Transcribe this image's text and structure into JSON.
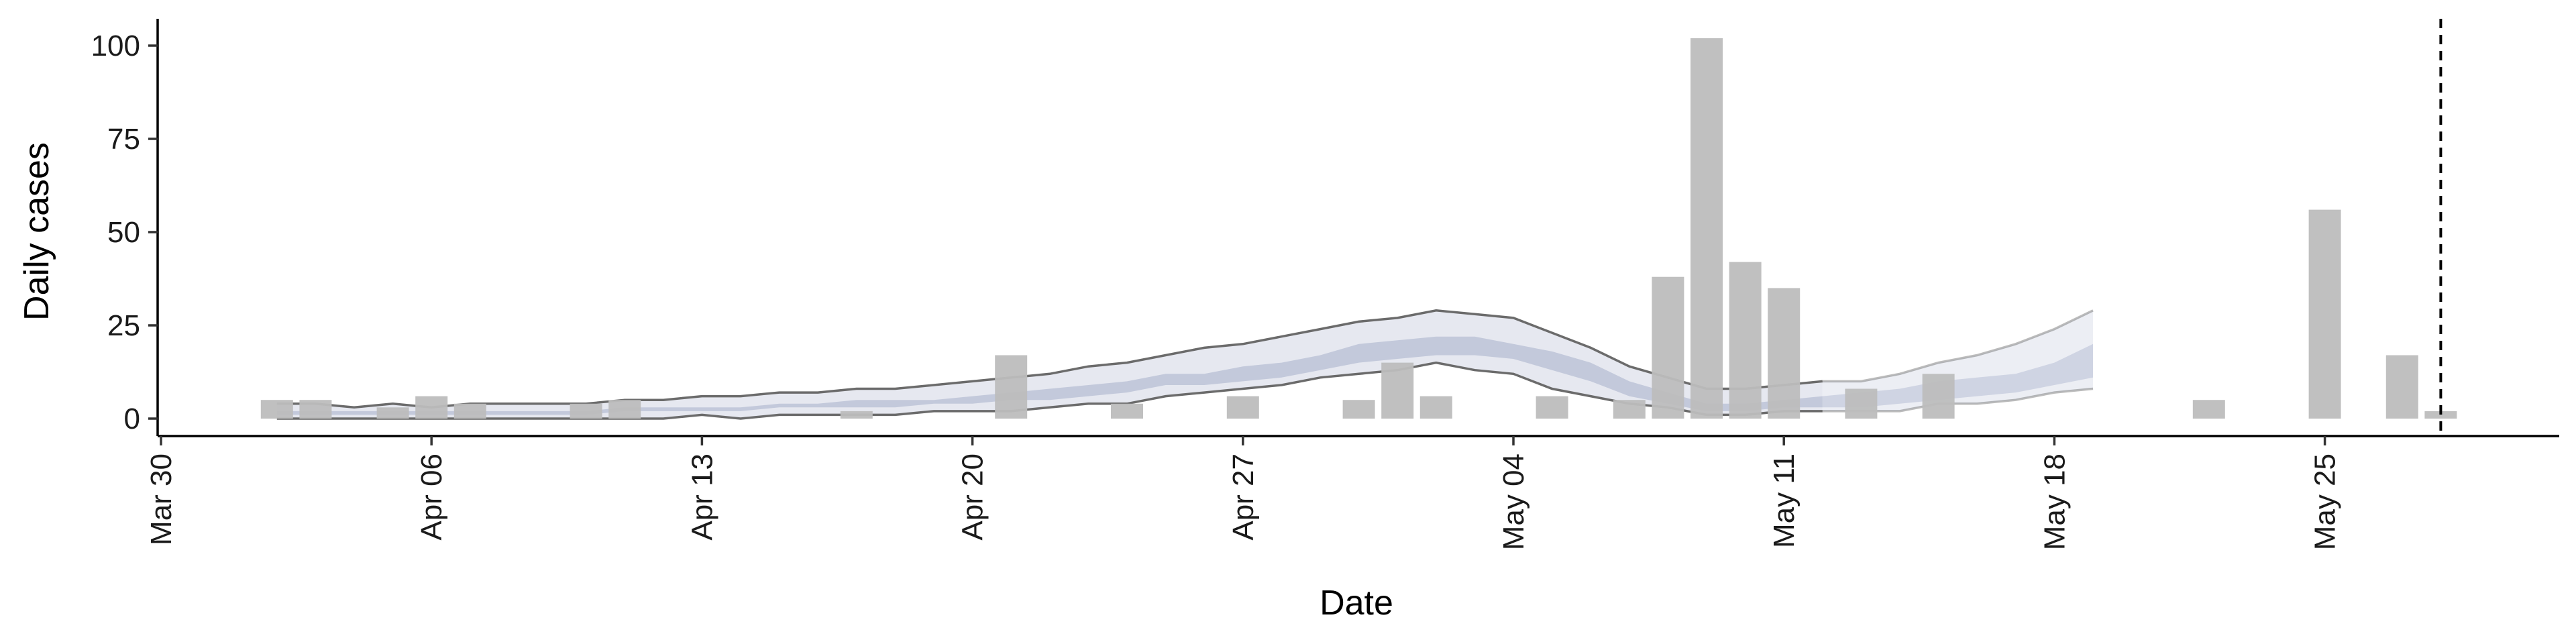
{
  "chart_data": {
    "type": "bar",
    "xlabel": "Date",
    "ylabel": "Daily cases",
    "xlim": [
      "2020-03-30",
      "2020-05-31"
    ],
    "ylim": [
      -5,
      107
    ],
    "x_ticks": [
      "2020-03-30",
      "2020-04-06",
      "2020-04-13",
      "2020-04-20",
      "2020-04-27",
      "2020-05-04",
      "2020-05-11",
      "2020-05-18",
      "2020-05-25"
    ],
    "x_tick_labels": [
      "Mar 30",
      "Apr 06",
      "Apr 13",
      "Apr 20",
      "Apr 27",
      "May 04",
      "May 11",
      "May 18",
      "May 25"
    ],
    "y_ticks": [
      0,
      25,
      50,
      75,
      100
    ],
    "y_tick_labels": [
      "0",
      "25",
      "50",
      "75",
      "100"
    ],
    "grid": false,
    "vline_date": "2020-05-28",
    "bars": {
      "color": "#bdbdbd",
      "points": [
        {
          "date": "2020-04-02",
          "value": 5
        },
        {
          "date": "2020-04-03",
          "value": 5
        },
        {
          "date": "2020-04-05",
          "value": 3
        },
        {
          "date": "2020-04-06",
          "value": 6
        },
        {
          "date": "2020-04-07",
          "value": 4
        },
        {
          "date": "2020-04-10",
          "value": 4
        },
        {
          "date": "2020-04-11",
          "value": 5
        },
        {
          "date": "2020-04-17",
          "value": 2
        },
        {
          "date": "2020-04-21",
          "value": 17
        },
        {
          "date": "2020-04-24",
          "value": 4
        },
        {
          "date": "2020-04-27",
          "value": 6
        },
        {
          "date": "2020-04-30",
          "value": 5
        },
        {
          "date": "2020-05-01",
          "value": 15
        },
        {
          "date": "2020-05-02",
          "value": 6
        },
        {
          "date": "2020-05-05",
          "value": 6
        },
        {
          "date": "2020-05-07",
          "value": 5
        },
        {
          "date": "2020-05-08",
          "value": 38
        },
        {
          "date": "2020-05-09",
          "value": 102
        },
        {
          "date": "2020-05-10",
          "value": 42
        },
        {
          "date": "2020-05-11",
          "value": 35
        },
        {
          "date": "2020-05-13",
          "value": 8
        },
        {
          "date": "2020-05-15",
          "value": 12
        },
        {
          "date": "2020-05-22",
          "value": 5
        },
        {
          "date": "2020-05-25",
          "value": 56
        },
        {
          "date": "2020-05-27",
          "value": 17
        },
        {
          "date": "2020-05-28",
          "value": 2
        }
      ]
    },
    "bands": {
      "estimate": {
        "dates": [
          "2020-04-02",
          "2020-04-03",
          "2020-04-04",
          "2020-04-05",
          "2020-04-06",
          "2020-04-07",
          "2020-04-08",
          "2020-04-09",
          "2020-04-10",
          "2020-04-11",
          "2020-04-12",
          "2020-04-13",
          "2020-04-14",
          "2020-04-15",
          "2020-04-16",
          "2020-04-17",
          "2020-04-18",
          "2020-04-19",
          "2020-04-20",
          "2020-04-21",
          "2020-04-22",
          "2020-04-23",
          "2020-04-24",
          "2020-04-25",
          "2020-04-26",
          "2020-04-27",
          "2020-04-28",
          "2020-04-29",
          "2020-04-30",
          "2020-05-01",
          "2020-05-02",
          "2020-05-03",
          "2020-05-04",
          "2020-05-05",
          "2020-05-06",
          "2020-05-07",
          "2020-05-08",
          "2020-05-09",
          "2020-05-10",
          "2020-05-11",
          "2020-05-12",
          "2020-05-13",
          "2020-05-14",
          "2020-05-15",
          "2020-05-16",
          "2020-05-17",
          "2020-05-18",
          "2020-05-19"
        ],
        "outer_lower": [
          0,
          0,
          0,
          0,
          0,
          0,
          0,
          0,
          0,
          0,
          0,
          1,
          0,
          1,
          1,
          1,
          1,
          2,
          2,
          2,
          3,
          4,
          4,
          6,
          7,
          8,
          9,
          11,
          12,
          13,
          15,
          13,
          12,
          8,
          6,
          4,
          3,
          1,
          1,
          2,
          2,
          2,
          2,
          4,
          4,
          5,
          7,
          8
        ],
        "outer_upper": [
          4,
          4,
          3,
          4,
          3,
          4,
          4,
          4,
          4,
          5,
          5,
          6,
          6,
          7,
          7,
          8,
          8,
          9,
          10,
          11,
          12,
          14,
          15,
          17,
          19,
          20,
          22,
          24,
          26,
          27,
          29,
          28,
          27,
          23,
          19,
          14,
          11,
          8,
          8,
          9,
          10,
          10,
          12,
          15,
          17,
          20,
          24,
          29
        ],
        "inner_lower": [
          1,
          1,
          1,
          1,
          1,
          1,
          1,
          1,
          1,
          2,
          2,
          2,
          2,
          3,
          3,
          3,
          3,
          4,
          4,
          5,
          5,
          6,
          7,
          9,
          9,
          10,
          11,
          13,
          15,
          16,
          17,
          17,
          16,
          13,
          10,
          6,
          4,
          2,
          2,
          3,
          3,
          3,
          4,
          5,
          6,
          7,
          9,
          11
        ],
        "inner_upper": [
          2,
          2,
          2,
          2,
          2,
          2,
          2,
          2,
          2,
          3,
          3,
          3,
          3,
          4,
          4,
          5,
          5,
          5,
          6,
          7,
          8,
          9,
          10,
          12,
          12,
          14,
          15,
          17,
          20,
          21,
          22,
          22,
          20,
          18,
          15,
          10,
          7,
          4,
          4,
          5,
          6,
          7,
          8,
          10,
          11,
          12,
          15,
          20
        ],
        "outer_color": "#e6e8f0",
        "inner_color": "#c3c9db",
        "line_color": "#6b6b6b"
      },
      "forecast_start": "2020-05-12"
    }
  }
}
